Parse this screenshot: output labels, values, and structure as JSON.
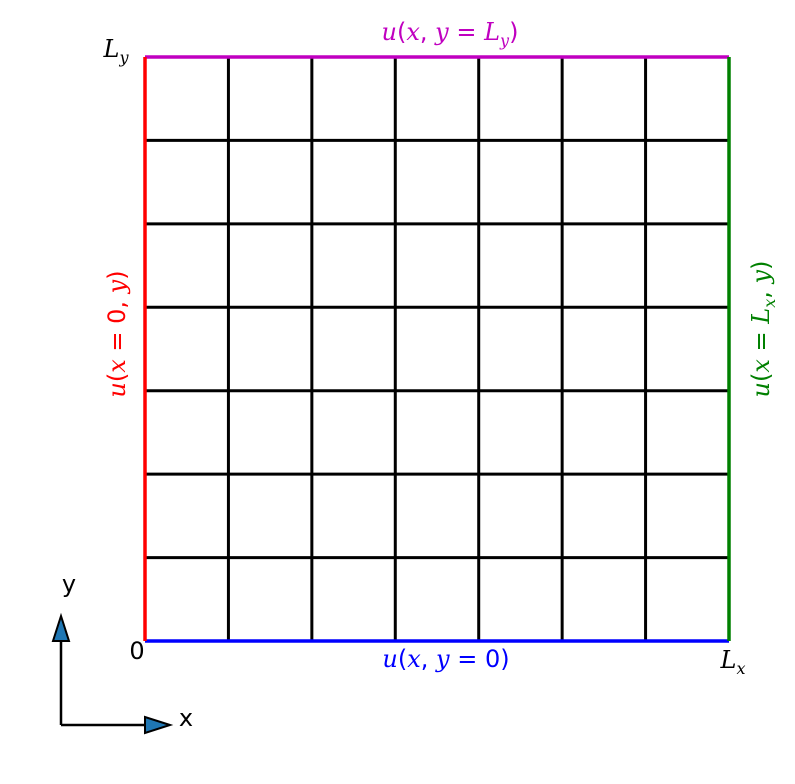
{
  "grid": {
    "cols": 7,
    "rows": 7,
    "line_color": "#000000"
  },
  "boundaries": {
    "top": {
      "label": "u(x, y = L_y)",
      "color": "#c000c0"
    },
    "bottom": {
      "label": "u(x, y = 0)",
      "color": "#0000ff"
    },
    "left": {
      "label": "u(x = 0, y)",
      "color": "#ff0000"
    },
    "right": {
      "label": "u(x = L_x, y)",
      "color": "#008000"
    }
  },
  "corner_labels": {
    "origin": "0",
    "ly": "L_y",
    "lx": "L_x"
  },
  "axes_indicator": {
    "x_label": "x",
    "y_label": "y",
    "arrow_color": "#1f77b4"
  }
}
